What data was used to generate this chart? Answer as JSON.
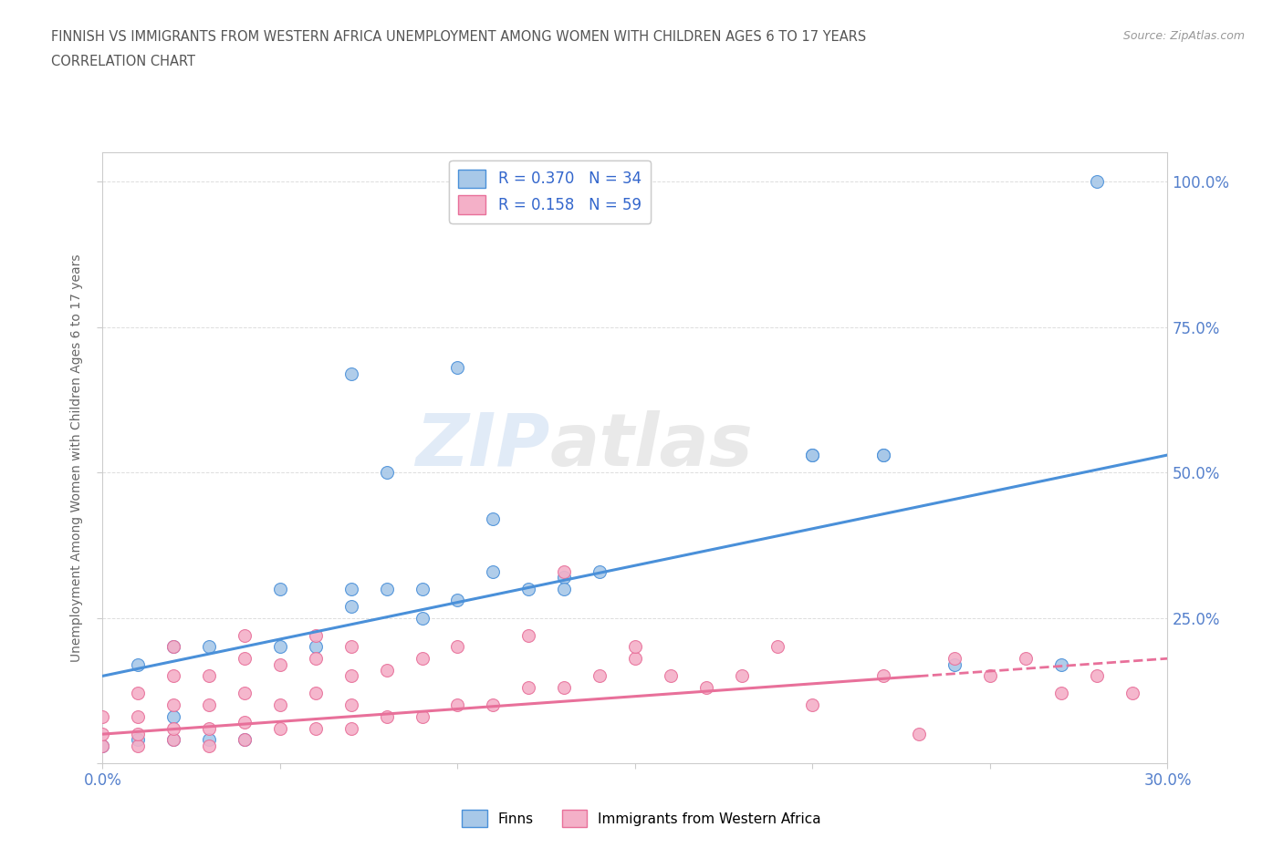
{
  "title_line1": "FINNISH VS IMMIGRANTS FROM WESTERN AFRICA UNEMPLOYMENT AMONG WOMEN WITH CHILDREN AGES 6 TO 17 YEARS",
  "title_line2": "CORRELATION CHART",
  "source": "Source: ZipAtlas.com",
  "ylabel_label": "Unemployment Among Women with Children Ages 6 to 17 years",
  "xlim": [
    0.0,
    0.3
  ],
  "ylim": [
    0.0,
    1.05
  ],
  "x_ticks": [
    0.0,
    0.05,
    0.1,
    0.15,
    0.2,
    0.25,
    0.3
  ],
  "y_ticks": [
    0.0,
    0.25,
    0.5,
    0.75,
    1.0
  ],
  "finns_R": 0.37,
  "finns_N": 34,
  "immigrants_R": 0.158,
  "immigrants_N": 59,
  "finns_color": "#a8c8e8",
  "immigrants_color": "#f4b0c8",
  "finns_line_color": "#4a90d9",
  "immigrants_line_color": "#e8709a",
  "legend_color": "#3366cc",
  "tick_color": "#5580cc",
  "background_color": "#ffffff",
  "grid_color": "#dddddd",
  "watermark": "ZIPatlas",
  "finns_scatter_x": [
    0.0,
    0.01,
    0.01,
    0.02,
    0.02,
    0.02,
    0.03,
    0.03,
    0.04,
    0.05,
    0.05,
    0.06,
    0.07,
    0.07,
    0.08,
    0.09,
    0.1,
    0.11,
    0.12,
    0.13,
    0.14,
    0.2,
    0.2,
    0.22,
    0.22,
    0.24,
    0.27,
    0.07,
    0.08,
    0.09,
    0.1,
    0.11,
    0.13,
    0.28
  ],
  "finns_scatter_y": [
    0.03,
    0.04,
    0.17,
    0.04,
    0.08,
    0.2,
    0.04,
    0.2,
    0.04,
    0.2,
    0.3,
    0.2,
    0.27,
    0.3,
    0.3,
    0.25,
    0.28,
    0.33,
    0.3,
    0.32,
    0.33,
    0.53,
    0.53,
    0.53,
    0.53,
    0.17,
    0.17,
    0.67,
    0.5,
    0.3,
    0.68,
    0.42,
    0.3,
    1.0
  ],
  "immigrants_scatter_x": [
    0.0,
    0.0,
    0.0,
    0.01,
    0.01,
    0.01,
    0.01,
    0.02,
    0.02,
    0.02,
    0.02,
    0.02,
    0.03,
    0.03,
    0.03,
    0.03,
    0.04,
    0.04,
    0.04,
    0.04,
    0.04,
    0.05,
    0.05,
    0.05,
    0.06,
    0.06,
    0.06,
    0.06,
    0.07,
    0.07,
    0.07,
    0.07,
    0.08,
    0.08,
    0.09,
    0.09,
    0.1,
    0.1,
    0.11,
    0.12,
    0.12,
    0.13,
    0.14,
    0.15,
    0.16,
    0.17,
    0.18,
    0.19,
    0.2,
    0.22,
    0.23,
    0.24,
    0.25,
    0.26,
    0.27,
    0.28,
    0.29,
    0.13,
    0.15
  ],
  "immigrants_scatter_y": [
    0.03,
    0.05,
    0.08,
    0.03,
    0.05,
    0.08,
    0.12,
    0.04,
    0.06,
    0.1,
    0.15,
    0.2,
    0.03,
    0.06,
    0.1,
    0.15,
    0.04,
    0.07,
    0.12,
    0.18,
    0.22,
    0.06,
    0.1,
    0.17,
    0.06,
    0.12,
    0.18,
    0.22,
    0.06,
    0.1,
    0.15,
    0.2,
    0.08,
    0.16,
    0.08,
    0.18,
    0.1,
    0.2,
    0.1,
    0.13,
    0.22,
    0.13,
    0.15,
    0.18,
    0.15,
    0.13,
    0.15,
    0.2,
    0.1,
    0.15,
    0.05,
    0.18,
    0.15,
    0.18,
    0.12,
    0.15,
    0.12,
    0.33,
    0.2
  ],
  "finns_trend_x": [
    0.0,
    0.3
  ],
  "finns_trend_y": [
    0.15,
    0.53
  ],
  "immigrants_trend_x": [
    0.0,
    0.3
  ],
  "immigrants_trend_y": [
    0.05,
    0.18
  ]
}
